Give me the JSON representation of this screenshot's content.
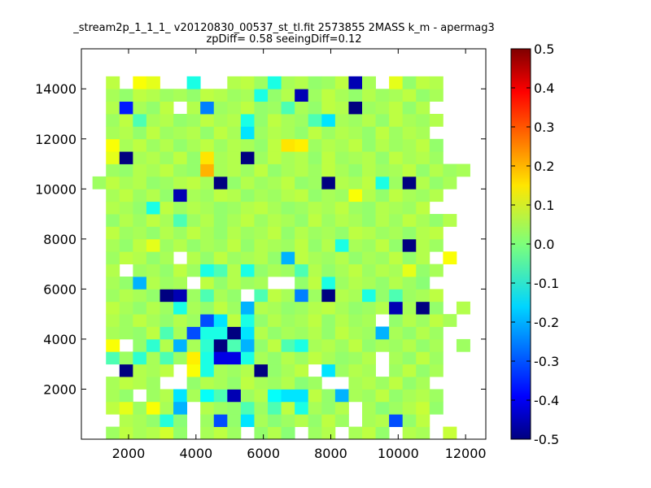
{
  "chart_data": {
    "type": "heatmap",
    "title_lines": [
      "_stream2p_1_1_1_ v20120830_00537_st_tl.fit 2573855 2MASS k_m - apermag3",
      "zpDiff= 0.58 seeingDiff=0.12"
    ],
    "xlim": [
      600,
      12600
    ],
    "ylim": [
      0,
      15600
    ],
    "x_ticks": [
      2000,
      4000,
      6000,
      8000,
      10000,
      12000
    ],
    "y_ticks": [
      2000,
      4000,
      6000,
      8000,
      10000,
      12000,
      14000
    ],
    "bin_grid": {
      "x0": 930,
      "y0": 0,
      "dx": 400,
      "dy": 500,
      "ncols": 28,
      "nrows": 30
    },
    "colormap": "jet",
    "color_range": [
      -0.5,
      0.5
    ],
    "colorbar_ticks": [
      -0.5,
      -0.4,
      -0.3,
      -0.2,
      -0.1,
      0.0,
      0.1,
      0.2,
      0.3,
      0.4,
      0.5
    ],
    "colorbar_tick_labels": [
      "-0.5",
      "-0.4",
      "-0.3",
      "-0.2",
      "-0.1",
      "0.0",
      "0.1",
      "0.2",
      "0.3",
      "0.4",
      "0.5"
    ],
    "cells_note": "Approximate binned differences; null = empty bin (white). Rows bottom-to-top.",
    "cells": [
      [
        null,
        0.03,
        0.06,
        0.04,
        0.05,
        0.08,
        0.02,
        null,
        0.04,
        0.06,
        0.03,
        null,
        0.02,
        0.05,
        0.01,
        null,
        0.03,
        0.05,
        null,
        0.04,
        0.06,
        0.02,
        null,
        0.05,
        0.04,
        null,
        0.07,
        null
      ],
      [
        null,
        null,
        0.05,
        0.04,
        0.02,
        -0.09,
        0.01,
        null,
        0.03,
        -0.3,
        0.02,
        -0.15,
        0.04,
        0.01,
        0.03,
        0.05,
        0.02,
        0.06,
        0.03,
        null,
        0.04,
        0.05,
        -0.3,
        0.02,
        0.06,
        null,
        null,
        null
      ],
      [
        null,
        0.06,
        0.1,
        0.03,
        0.12,
        0.04,
        -0.2,
        null,
        0.05,
        0.03,
        0.02,
        -0.05,
        0.03,
        -0.05,
        0.06,
        -0.1,
        0.04,
        0.02,
        0.05,
        null,
        0.04,
        0.01,
        0.03,
        0.05,
        0.07,
        0.02,
        null,
        null
      ],
      [
        null,
        0.04,
        0.02,
        null,
        0.03,
        0.05,
        -0.15,
        0.04,
        -0.12,
        -0.05,
        -0.45,
        0.03,
        0.05,
        -0.12,
        -0.15,
        -0.15,
        0.06,
        0.02,
        -0.2,
        0.04,
        0.03,
        0.06,
        0.02,
        0.04,
        0.05,
        0.03,
        null,
        null
      ],
      [
        null,
        0.04,
        0.06,
        0.05,
        0.03,
        null,
        null,
        0.02,
        0.05,
        0.04,
        0.02,
        0.06,
        0.04,
        0.03,
        0.05,
        0.01,
        0.03,
        null,
        null,
        0.04,
        0.05,
        0.03,
        0.06,
        0.02,
        0.04,
        null,
        null,
        null
      ],
      [
        null,
        null,
        -0.5,
        0.05,
        0.04,
        0.06,
        null,
        0.12,
        -0.1,
        0.04,
        0.03,
        0.05,
        -0.5,
        0.02,
        0.04,
        0.06,
        null,
        -0.15,
        0.03,
        0.05,
        0.04,
        null,
        0.03,
        0.06,
        0.02,
        0.04,
        null,
        null
      ],
      [
        null,
        -0.05,
        0.03,
        -0.08,
        0.04,
        -0.05,
        0.03,
        0.14,
        -0.1,
        -0.4,
        -0.4,
        -0.1,
        0.04,
        0.02,
        0.05,
        0.03,
        0.06,
        0.04,
        0.02,
        0.03,
        0.05,
        null,
        0.04,
        0.02,
        0.06,
        0.03,
        null,
        null
      ],
      [
        null,
        0.12,
        null,
        0.02,
        -0.08,
        0.05,
        -0.2,
        0.04,
        -0.08,
        -0.5,
        -0.05,
        -0.2,
        0.02,
        0.06,
        -0.05,
        -0.1,
        0.04,
        0.05,
        0.03,
        0.06,
        0.02,
        0.04,
        0.03,
        0.05,
        0.02,
        0.04,
        null,
        0.03
      ],
      [
        null,
        0.04,
        0.03,
        0.02,
        0.06,
        -0.05,
        0.04,
        -0.3,
        -0.1,
        -0.1,
        -0.5,
        -0.15,
        0.05,
        0.02,
        0.04,
        0.03,
        0.05,
        0.02,
        0.06,
        0.04,
        0.03,
        -0.2,
        0.04,
        0.02,
        0.05,
        0.03,
        null,
        null
      ],
      [
        null,
        0.05,
        0.03,
        0.06,
        0.04,
        0.02,
        0.05,
        0.03,
        -0.3,
        -0.15,
        0.06,
        -0.1,
        0.02,
        0.05,
        0.03,
        0.04,
        0.06,
        0.02,
        0.05,
        0.03,
        0.04,
        null,
        0.02,
        0.05,
        0.03,
        0.06,
        0.04,
        null
      ],
      [
        null,
        0.06,
        0.04,
        0.02,
        0.05,
        0.03,
        -0.1,
        0.04,
        0.02,
        0.06,
        0.03,
        -0.2,
        0.05,
        0.04,
        0.02,
        0.03,
        0.05,
        0.06,
        0.04,
        0.02,
        0.03,
        0.05,
        -0.45,
        0.04,
        -0.5,
        0.02,
        null,
        0.05
      ],
      [
        null,
        0.03,
        0.05,
        0.04,
        0.02,
        -0.5,
        -0.45,
        0.03,
        -0.05,
        0.04,
        0.02,
        null,
        -0.05,
        0.06,
        0.04,
        -0.25,
        0.03,
        -0.5,
        0.05,
        0.04,
        -0.1,
        0.02,
        -0.05,
        0.03,
        0.04,
        0.06,
        null,
        null
      ],
      [
        null,
        0.04,
        0.02,
        -0.2,
        0.05,
        0.03,
        0.04,
        null,
        0.06,
        0.02,
        0.05,
        0.03,
        0.04,
        null,
        null,
        0.02,
        0.06,
        -0.1,
        0.03,
        0.05,
        0.04,
        0.02,
        0.05,
        0.03,
        0.01,
        null,
        null,
        null
      ],
      [
        null,
        0.05,
        null,
        0.03,
        0.04,
        0.02,
        0.06,
        0.03,
        -0.1,
        -0.05,
        0.05,
        -0.1,
        0.02,
        0.04,
        0.03,
        -0.05,
        0.05,
        0.02,
        0.04,
        0.06,
        0.03,
        0.05,
        0.04,
        0.1,
        0.02,
        0.04,
        null,
        null
      ],
      [
        null,
        0.03,
        0.06,
        0.05,
        0.02,
        0.04,
        null,
        0.05,
        0.02,
        0.06,
        0.03,
        0.04,
        0.05,
        0.02,
        -0.2,
        0.06,
        0.04,
        0.03,
        0.05,
        0.02,
        0.04,
        0.03,
        0.06,
        0.02,
        0.05,
        null,
        0.12,
        null
      ],
      [
        null,
        0.04,
        0.02,
        0.06,
        0.1,
        0.03,
        0.05,
        0.02,
        0.04,
        0.03,
        0.06,
        0.02,
        0.05,
        0.04,
        0.03,
        0.06,
        0.02,
        0.05,
        -0.1,
        0.04,
        0.03,
        0.06,
        0.02,
        -0.5,
        0.05,
        0.03,
        null,
        null
      ],
      [
        null,
        0.06,
        0.03,
        0.04,
        0.02,
        0.05,
        0.03,
        0.06,
        0.04,
        0.02,
        0.05,
        0.03,
        0.04,
        0.06,
        0.02,
        0.05,
        0.03,
        0.04,
        0.02,
        0.06,
        0.05,
        0.03,
        0.04,
        0.02,
        0.05,
        0.06,
        null,
        null
      ],
      [
        null,
        0.02,
        0.05,
        0.03,
        0.06,
        0.04,
        -0.05,
        0.03,
        0.05,
        0.02,
        0.04,
        0.06,
        0.03,
        0.05,
        0.04,
        0.02,
        0.06,
        0.03,
        0.05,
        0.04,
        0.02,
        0.05,
        0.03,
        0.06,
        0.04,
        0.02,
        0.05,
        null
      ],
      [
        null,
        0.05,
        0.04,
        0.02,
        -0.1,
        0.06,
        0.03,
        0.05,
        0.04,
        0.02,
        0.03,
        0.05,
        0.06,
        0.04,
        0.02,
        0.03,
        0.05,
        0.04,
        0.06,
        0.03,
        0.02,
        0.05,
        0.04,
        0.03,
        0.06,
        null,
        null,
        null
      ],
      [
        null,
        0.04,
        0.06,
        0.03,
        0.05,
        0.02,
        -0.45,
        0.04,
        0.03,
        0.06,
        0.05,
        0.02,
        0.04,
        0.03,
        0.05,
        0.06,
        0.02,
        0.04,
        0.03,
        0.12,
        0.05,
        0.02,
        0.06,
        0.04,
        0.03,
        0.05,
        null,
        null
      ],
      [
        0.03,
        0.06,
        0.04,
        0.05,
        0.02,
        0.03,
        0.05,
        0.06,
        0.04,
        -0.5,
        0.02,
        0.05,
        0.03,
        0.04,
        0.06,
        0.02,
        0.03,
        -0.5,
        0.05,
        0.04,
        0.06,
        -0.1,
        0.03,
        -0.5,
        0.05,
        0.02,
        0.04,
        null
      ],
      [
        null,
        0.03,
        0.02,
        0.05,
        0.04,
        0.06,
        0.03,
        0.02,
        0.2,
        0.04,
        0.05,
        0.03,
        0.06,
        0.02,
        0.04,
        0.05,
        0.03,
        0.06,
        0.04,
        0.02,
        0.05,
        0.03,
        0.04,
        0.06,
        0.02,
        0.05,
        0.03,
        0.04
      ],
      [
        null,
        0.1,
        -0.5,
        0.04,
        0.05,
        0.03,
        0.06,
        0.02,
        0.15,
        0.04,
        0.05,
        -0.5,
        0.03,
        0.06,
        0.04,
        0.05,
        0.02,
        0.06,
        0.03,
        0.04,
        0.05,
        0.02,
        0.06,
        0.04,
        0.05,
        0.03,
        null,
        null
      ],
      [
        null,
        0.12,
        0.04,
        0.06,
        0.03,
        0.05,
        0.02,
        0.04,
        0.06,
        0.03,
        0.05,
        0.04,
        0.02,
        0.06,
        0.15,
        0.14,
        0.03,
        0.05,
        0.04,
        0.06,
        0.02,
        0.05,
        0.03,
        0.04,
        0.06,
        0.02,
        null,
        null
      ],
      [
        null,
        0.04,
        0.05,
        0.02,
        0.06,
        0.03,
        0.04,
        0.05,
        0.02,
        0.06,
        0.04,
        -0.15,
        0.03,
        0.05,
        0.04,
        0.02,
        0.06,
        0.03,
        0.05,
        0.04,
        0.02,
        0.06,
        0.03,
        0.05,
        0.04,
        null,
        null,
        null
      ],
      [
        null,
        0.03,
        0.06,
        -0.05,
        0.04,
        0.05,
        0.02,
        0.03,
        0.06,
        0.04,
        0.05,
        -0.1,
        0.02,
        0.06,
        0.04,
        0.03,
        -0.05,
        -0.15,
        0.04,
        0.03,
        0.05,
        0.02,
        0.06,
        0.04,
        0.03,
        0.05,
        null,
        null
      ],
      [
        null,
        0.05,
        -0.35,
        0.04,
        0.02,
        0.06,
        null,
        0.05,
        -0.25,
        0.03,
        0.04,
        0.06,
        0.02,
        0.03,
        -0.05,
        0.04,
        0.02,
        0.06,
        0.05,
        -0.5,
        0.03,
        0.04,
        0.06,
        0.02,
        0.05,
        null,
        null,
        null
      ],
      [
        null,
        0.04,
        0.02,
        0.06,
        0.05,
        0.03,
        0.04,
        0.02,
        0.06,
        0.05,
        0.03,
        0.04,
        -0.1,
        0.02,
        0.05,
        -0.45,
        0.03,
        0.06,
        0.04,
        0.02,
        0.05,
        0.03,
        0.04,
        0.06,
        0.02,
        0.04,
        null,
        null
      ],
      [
        null,
        0.06,
        null,
        0.12,
        0.1,
        null,
        null,
        -0.1,
        null,
        null,
        0.05,
        0.06,
        0.03,
        -0.1,
        0.04,
        0.05,
        0.02,
        0.03,
        0.06,
        -0.45,
        0.04,
        null,
        0.1,
        0.02,
        0.06,
        0.05,
        null,
        null
      ],
      [
        null,
        null,
        null,
        null,
        null,
        null,
        null,
        null,
        null,
        null,
        null,
        null,
        null,
        null,
        null,
        null,
        null,
        null,
        null,
        null,
        null,
        null,
        null,
        null,
        null,
        null,
        null,
        null
      ]
    ]
  }
}
